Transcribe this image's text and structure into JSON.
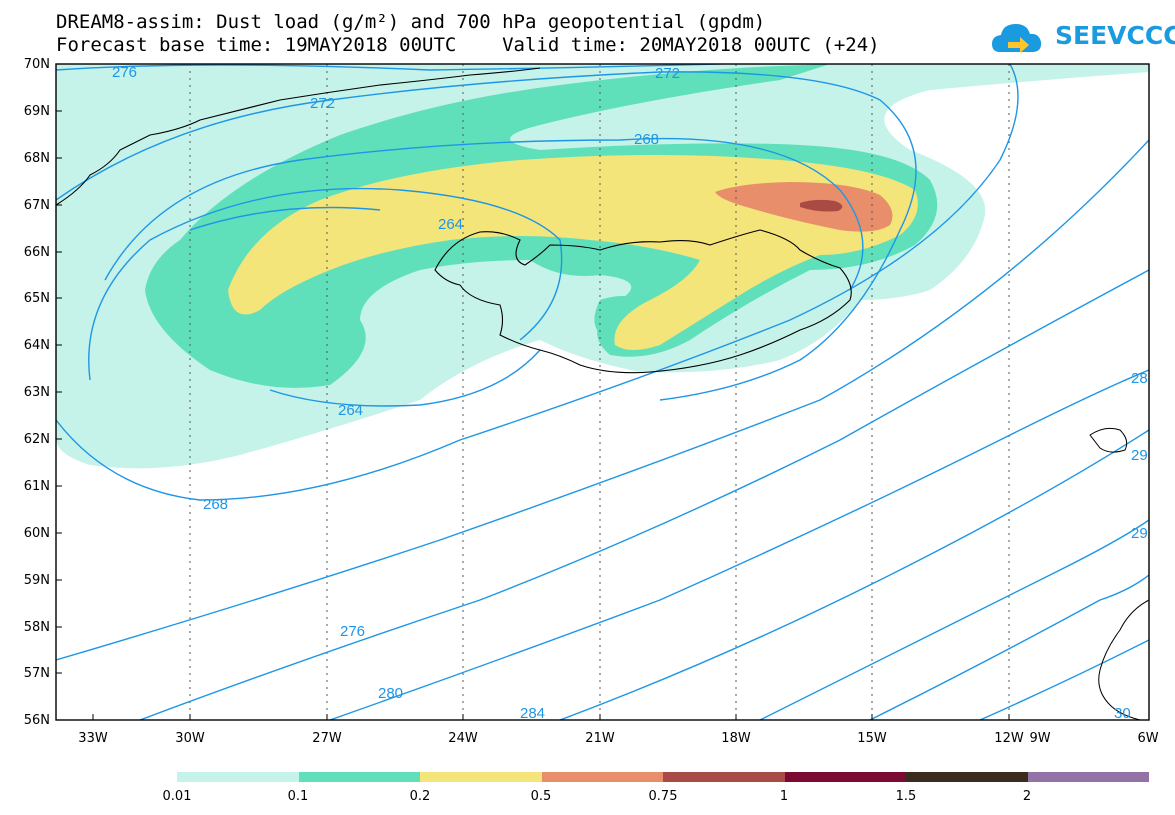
{
  "title": {
    "line1": "DREAM8-assim: Dust load (g/m²) and 700 hPa geopotential (gpdm)",
    "line2": "Forecast base time: 19MAY2018 00UTC    Valid time: 20MAY2018 00UTC (+24)"
  },
  "logo": {
    "text": "SEEVCCC",
    "icon": "cloud-arrow-icon",
    "color": "#1a9be0"
  },
  "map": {
    "lat_labels": [
      "70N",
      "69N",
      "68N",
      "67N",
      "66N",
      "65N",
      "64N",
      "63N",
      "62N",
      "61N",
      "60N",
      "59N",
      "58N",
      "57N",
      "56N"
    ],
    "lon_labels": [
      "33W",
      "30W",
      "27W",
      "24W",
      "21W",
      "18W",
      "15W",
      "12W",
      "9W",
      "6W"
    ],
    "contour_labels": [
      "276",
      "272",
      "272",
      "268",
      "264",
      "264",
      "268",
      "276",
      "280",
      "284",
      "28",
      "29",
      "29",
      "30"
    ],
    "contour_color": "#1e96e6",
    "coastline_color": "#000000"
  },
  "colorbar": {
    "colors": [
      "#c5f2e9",
      "#5fe0bb",
      "#f4e57a",
      "#e88e6b",
      "#a84b44",
      "#7a0a32",
      "#3b2a1e",
      "#9372a8"
    ],
    "labels": [
      "0.01",
      "0.1",
      "0.2",
      "0.5",
      "0.75",
      "1",
      "1.5",
      "2"
    ]
  }
}
